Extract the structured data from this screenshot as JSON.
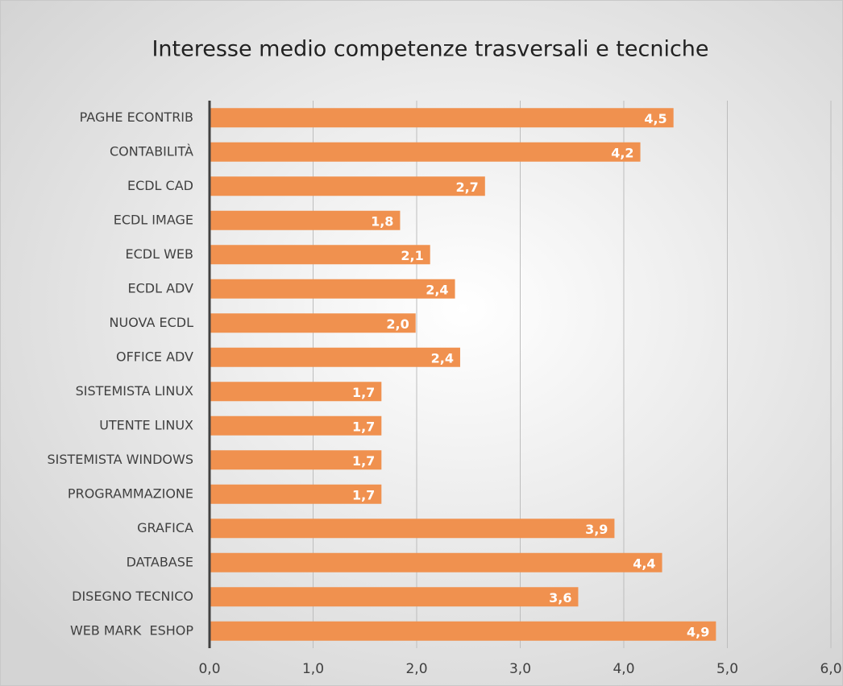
{
  "chart_data": {
    "type": "bar",
    "orientation": "horizontal",
    "title": "Interesse medio competenze trasversali e tecniche",
    "categories": [
      "PAGHE ECONTRIB",
      "CONTABILITÀ",
      "ECDL CAD",
      "ECDL IMAGE",
      "ECDL WEB",
      "ECDL ADV",
      "NUOVA ECDL",
      "OFFICE ADV",
      "SISTEMISTA LINUX",
      "UTENTE LINUX",
      "SISTEMISTA WINDOWS",
      "PROGRAMMAZIONE",
      "GRAFICA",
      "DATABASE",
      "DISEGNO TECNICO",
      "WEB MARK  ESHOP"
    ],
    "values": [
      4.48,
      4.16,
      2.66,
      1.84,
      2.13,
      2.37,
      1.99,
      2.42,
      1.66,
      1.66,
      1.66,
      1.66,
      3.91,
      4.37,
      3.56,
      4.89
    ],
    "value_labels": [
      "4,5",
      "4,2",
      "2,7",
      "1,8",
      "2,1",
      "2,4",
      "2,0",
      "2,4",
      "1,7",
      "1,7",
      "1,7",
      "1,7",
      "3,9",
      "4,4",
      "3,6",
      "4,9"
    ],
    "color": "#f0914f",
    "xlim": [
      0,
      6
    ],
    "xticks": [
      {
        "value": 0,
        "label": "0,0"
      },
      {
        "value": 1,
        "label": "1,0"
      },
      {
        "value": 2,
        "label": "2,0"
      },
      {
        "value": 3,
        "label": "3,0"
      },
      {
        "value": 4,
        "label": "4,0"
      },
      {
        "value": 5,
        "label": "5,0"
      },
      {
        "value": 6,
        "label": "6,0"
      }
    ],
    "grid": true
  }
}
